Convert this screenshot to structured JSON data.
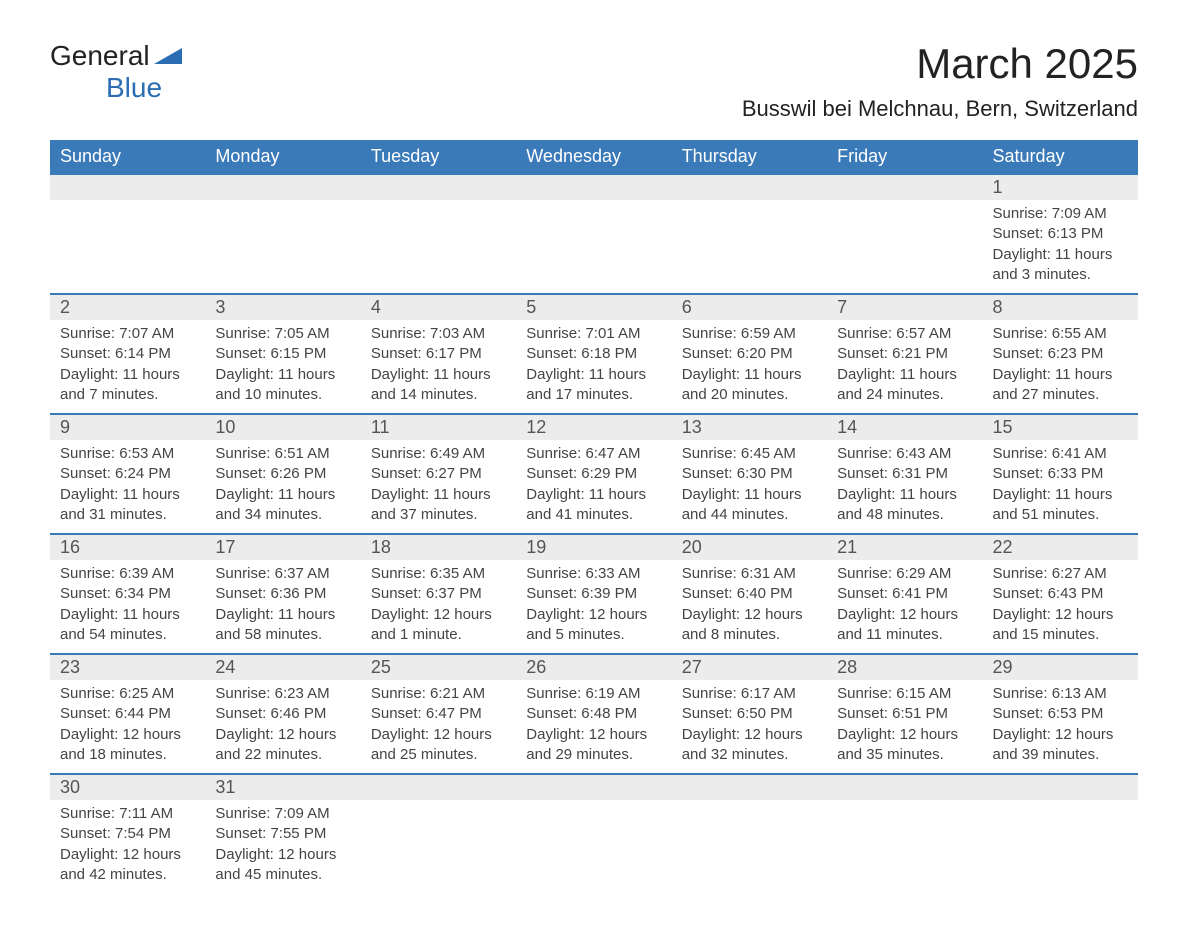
{
  "brand": {
    "name1": "General",
    "name2": "Blue",
    "icon_color": "#2a6db3",
    "text_color": "#222222"
  },
  "header": {
    "month_title": "March 2025",
    "location": "Busswil bei Melchnau, Bern, Switzerland"
  },
  "styling": {
    "header_bg": "#3a7ab8",
    "header_fg": "#ffffff",
    "daynum_bg": "#ececec",
    "row_border": "#3a7ab8",
    "body_text": "#444444",
    "title_fontsize": 42,
    "location_fontsize": 22,
    "dayheader_fontsize": 18,
    "cell_fontsize": 15
  },
  "day_headers": [
    "Sunday",
    "Monday",
    "Tuesday",
    "Wednesday",
    "Thursday",
    "Friday",
    "Saturday"
  ],
  "weeks": [
    [
      null,
      null,
      null,
      null,
      null,
      null,
      {
        "n": "1",
        "sr": "Sunrise: 7:09 AM",
        "ss": "Sunset: 6:13 PM",
        "dl": "Daylight: 11 hours and 3 minutes."
      }
    ],
    [
      {
        "n": "2",
        "sr": "Sunrise: 7:07 AM",
        "ss": "Sunset: 6:14 PM",
        "dl": "Daylight: 11 hours and 7 minutes."
      },
      {
        "n": "3",
        "sr": "Sunrise: 7:05 AM",
        "ss": "Sunset: 6:15 PM",
        "dl": "Daylight: 11 hours and 10 minutes."
      },
      {
        "n": "4",
        "sr": "Sunrise: 7:03 AM",
        "ss": "Sunset: 6:17 PM",
        "dl": "Daylight: 11 hours and 14 minutes."
      },
      {
        "n": "5",
        "sr": "Sunrise: 7:01 AM",
        "ss": "Sunset: 6:18 PM",
        "dl": "Daylight: 11 hours and 17 minutes."
      },
      {
        "n": "6",
        "sr": "Sunrise: 6:59 AM",
        "ss": "Sunset: 6:20 PM",
        "dl": "Daylight: 11 hours and 20 minutes."
      },
      {
        "n": "7",
        "sr": "Sunrise: 6:57 AM",
        "ss": "Sunset: 6:21 PM",
        "dl": "Daylight: 11 hours and 24 minutes."
      },
      {
        "n": "8",
        "sr": "Sunrise: 6:55 AM",
        "ss": "Sunset: 6:23 PM",
        "dl": "Daylight: 11 hours and 27 minutes."
      }
    ],
    [
      {
        "n": "9",
        "sr": "Sunrise: 6:53 AM",
        "ss": "Sunset: 6:24 PM",
        "dl": "Daylight: 11 hours and 31 minutes."
      },
      {
        "n": "10",
        "sr": "Sunrise: 6:51 AM",
        "ss": "Sunset: 6:26 PM",
        "dl": "Daylight: 11 hours and 34 minutes."
      },
      {
        "n": "11",
        "sr": "Sunrise: 6:49 AM",
        "ss": "Sunset: 6:27 PM",
        "dl": "Daylight: 11 hours and 37 minutes."
      },
      {
        "n": "12",
        "sr": "Sunrise: 6:47 AM",
        "ss": "Sunset: 6:29 PM",
        "dl": "Daylight: 11 hours and 41 minutes."
      },
      {
        "n": "13",
        "sr": "Sunrise: 6:45 AM",
        "ss": "Sunset: 6:30 PM",
        "dl": "Daylight: 11 hours and 44 minutes."
      },
      {
        "n": "14",
        "sr": "Sunrise: 6:43 AM",
        "ss": "Sunset: 6:31 PM",
        "dl": "Daylight: 11 hours and 48 minutes."
      },
      {
        "n": "15",
        "sr": "Sunrise: 6:41 AM",
        "ss": "Sunset: 6:33 PM",
        "dl": "Daylight: 11 hours and 51 minutes."
      }
    ],
    [
      {
        "n": "16",
        "sr": "Sunrise: 6:39 AM",
        "ss": "Sunset: 6:34 PM",
        "dl": "Daylight: 11 hours and 54 minutes."
      },
      {
        "n": "17",
        "sr": "Sunrise: 6:37 AM",
        "ss": "Sunset: 6:36 PM",
        "dl": "Daylight: 11 hours and 58 minutes."
      },
      {
        "n": "18",
        "sr": "Sunrise: 6:35 AM",
        "ss": "Sunset: 6:37 PM",
        "dl": "Daylight: 12 hours and 1 minute."
      },
      {
        "n": "19",
        "sr": "Sunrise: 6:33 AM",
        "ss": "Sunset: 6:39 PM",
        "dl": "Daylight: 12 hours and 5 minutes."
      },
      {
        "n": "20",
        "sr": "Sunrise: 6:31 AM",
        "ss": "Sunset: 6:40 PM",
        "dl": "Daylight: 12 hours and 8 minutes."
      },
      {
        "n": "21",
        "sr": "Sunrise: 6:29 AM",
        "ss": "Sunset: 6:41 PM",
        "dl": "Daylight: 12 hours and 11 minutes."
      },
      {
        "n": "22",
        "sr": "Sunrise: 6:27 AM",
        "ss": "Sunset: 6:43 PM",
        "dl": "Daylight: 12 hours and 15 minutes."
      }
    ],
    [
      {
        "n": "23",
        "sr": "Sunrise: 6:25 AM",
        "ss": "Sunset: 6:44 PM",
        "dl": "Daylight: 12 hours and 18 minutes."
      },
      {
        "n": "24",
        "sr": "Sunrise: 6:23 AM",
        "ss": "Sunset: 6:46 PM",
        "dl": "Daylight: 12 hours and 22 minutes."
      },
      {
        "n": "25",
        "sr": "Sunrise: 6:21 AM",
        "ss": "Sunset: 6:47 PM",
        "dl": "Daylight: 12 hours and 25 minutes."
      },
      {
        "n": "26",
        "sr": "Sunrise: 6:19 AM",
        "ss": "Sunset: 6:48 PM",
        "dl": "Daylight: 12 hours and 29 minutes."
      },
      {
        "n": "27",
        "sr": "Sunrise: 6:17 AM",
        "ss": "Sunset: 6:50 PM",
        "dl": "Daylight: 12 hours and 32 minutes."
      },
      {
        "n": "28",
        "sr": "Sunrise: 6:15 AM",
        "ss": "Sunset: 6:51 PM",
        "dl": "Daylight: 12 hours and 35 minutes."
      },
      {
        "n": "29",
        "sr": "Sunrise: 6:13 AM",
        "ss": "Sunset: 6:53 PM",
        "dl": "Daylight: 12 hours and 39 minutes."
      }
    ],
    [
      {
        "n": "30",
        "sr": "Sunrise: 7:11 AM",
        "ss": "Sunset: 7:54 PM",
        "dl": "Daylight: 12 hours and 42 minutes."
      },
      {
        "n": "31",
        "sr": "Sunrise: 7:09 AM",
        "ss": "Sunset: 7:55 PM",
        "dl": "Daylight: 12 hours and 45 minutes."
      },
      null,
      null,
      null,
      null,
      null
    ]
  ]
}
